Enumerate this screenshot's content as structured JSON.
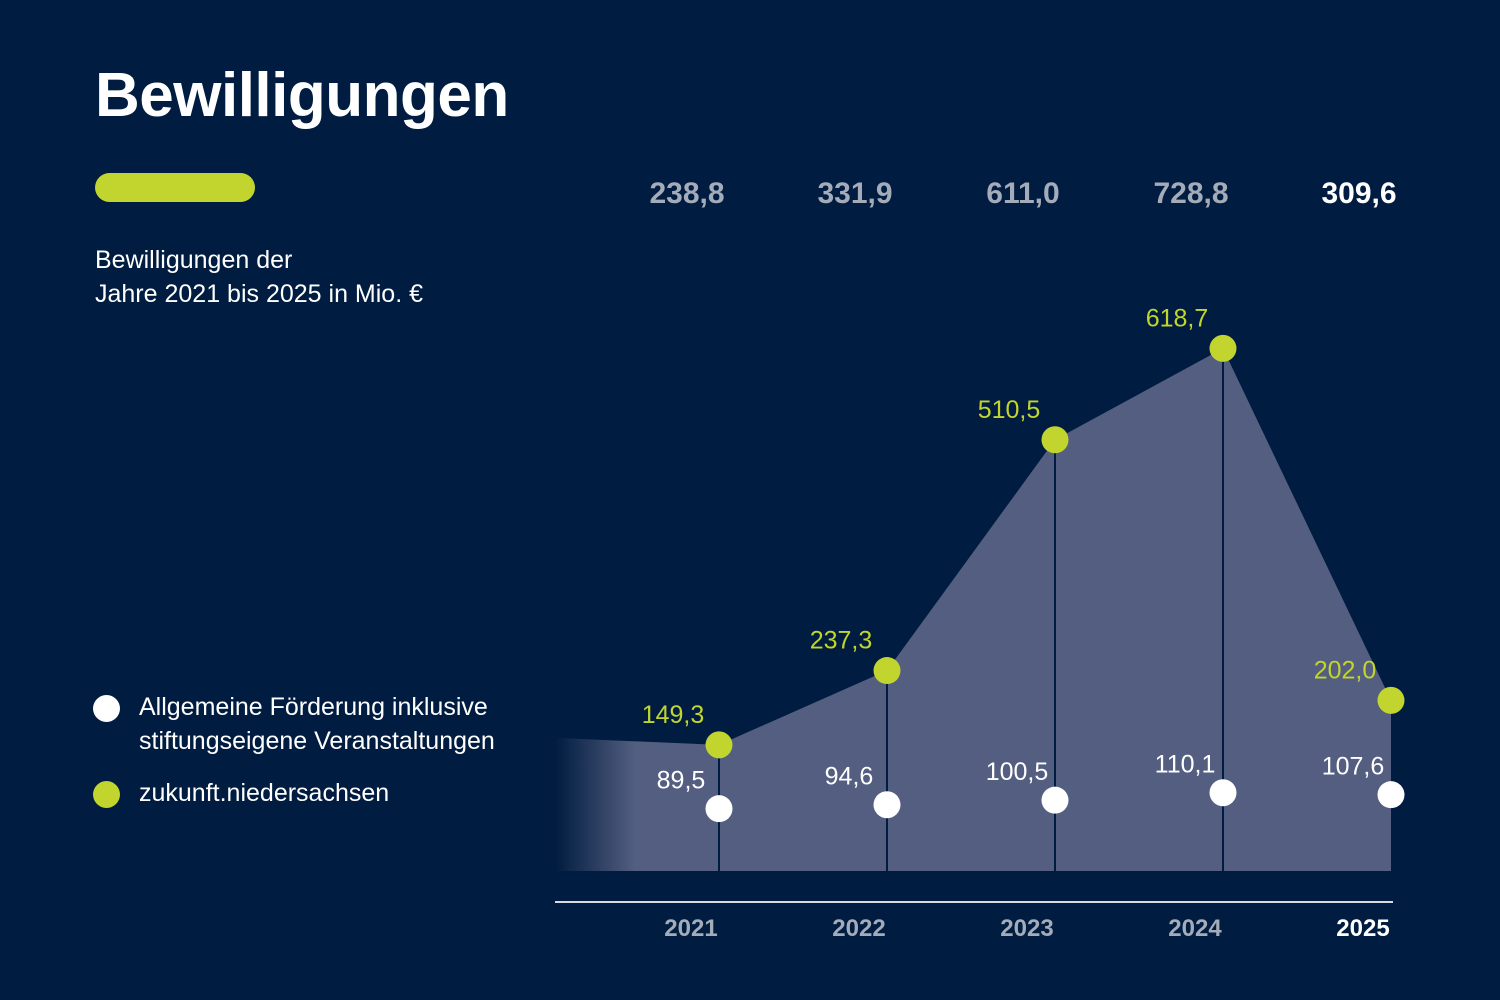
{
  "header": {
    "title": "Bewilligungen",
    "subtitle_line1": "Bewilligungen der",
    "subtitle_line2": "Jahre 2021 bis 2025 in Mio. €"
  },
  "legend": {
    "items": [
      {
        "label": "Allgemeine Förderung inklusive stiftungseigene Veranstaltungen",
        "color": "#ffffff"
      },
      {
        "label": "zukunft.niedersachsen",
        "color": "#c1d52e"
      }
    ]
  },
  "colors": {
    "background": "#001c40",
    "area": "#535e80",
    "accent": "#c1d52e",
    "muted_text": "#a4abb9",
    "white": "#ffffff"
  },
  "chart_data": {
    "type": "area",
    "categories": [
      "2021",
      "2022",
      "2023",
      "2024",
      "2025"
    ],
    "highlight_category": "2025",
    "series": [
      {
        "name": "Allgemeine Förderung inklusive stiftungseigene Veranstaltungen",
        "values": [
          89.5,
          94.6,
          100.5,
          110.1,
          107.6
        ],
        "labels": [
          "89,5",
          "94,6",
          "100,5",
          "110,1",
          "107,6"
        ]
      },
      {
        "name": "zukunft.niedersachsen",
        "values": [
          149.3,
          237.3,
          510.5,
          618.7,
          202.0
        ],
        "labels": [
          "149,3",
          "237,3",
          "510,5",
          "618,7",
          "202,0"
        ]
      }
    ],
    "totals": [
      238.8,
      331.9,
      611.0,
      728.8,
      309.6
    ],
    "total_labels": [
      "238,8",
      "331,9",
      "611,0",
      "728,8",
      "309,6"
    ],
    "xlabel": "",
    "ylabel": "",
    "grid": false
  }
}
